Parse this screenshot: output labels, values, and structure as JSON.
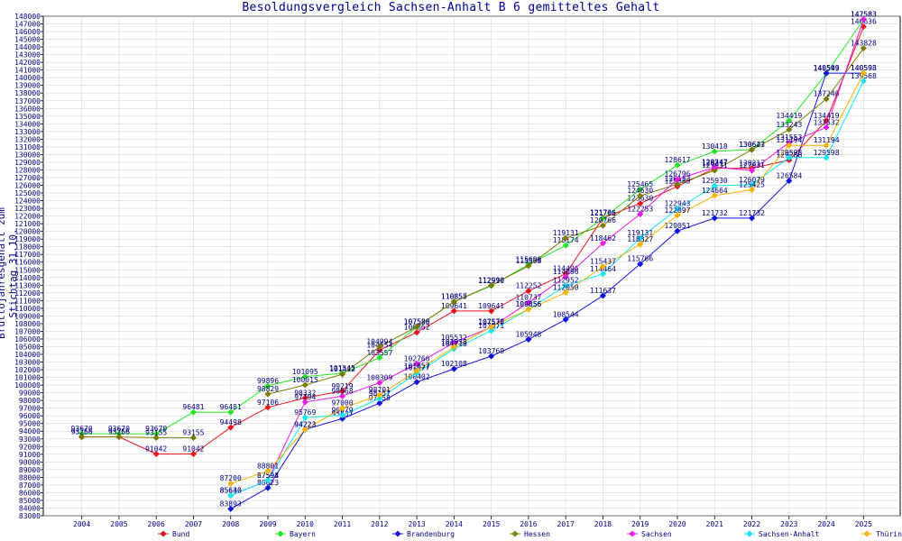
{
  "chart_data": {
    "type": "line",
    "title": "Besoldungsvergleich Sachsen-Anhalt B 6 gemitteltes Gehalt",
    "ylabel": "Bruttojahresgehalt zum Stichtag 31.10.",
    "xlabel": "",
    "ylim": [
      83000,
      148000
    ],
    "ytick_step": 1000,
    "grid": true,
    "legend_position": "bottom",
    "x": [
      2004,
      2005,
      2006,
      2007,
      2008,
      2009,
      2010,
      2011,
      2012,
      2013,
      2014,
      2015,
      2016,
      2017,
      2018,
      2019,
      2020,
      2021,
      2022,
      2023,
      2024,
      2025
    ],
    "series": [
      {
        "name": "Bund",
        "color": "#e8141c",
        "values": [
          93266,
          93266,
          91042,
          91042,
          94498,
          97106,
          98332,
          99219,
          104554,
          106862,
          109641,
          109641,
          112252,
          114496,
          121766,
          123630,
          125865,
          128217,
          128217,
          129288,
          134419,
          146636
        ]
      },
      {
        "name": "Bayern",
        "color": "#22e622",
        "values": [
          93670,
          93670,
          93670,
          96481,
          96481,
          99896,
          101095,
          101545,
          103557,
          107586,
          110855,
          112910,
          115698,
          118174,
          121705,
          125465,
          128617,
          130418,
          130643,
          134419,
          140549,
          147583
        ]
      },
      {
        "name": "Brandenburg",
        "color": "#1010e0",
        "values": [
          null,
          null,
          null,
          null,
          83893,
          86623,
          94223,
          95637,
          97658,
          100402,
          102108,
          103769,
          105948,
          108544,
          111637,
          115766,
          120051,
          121732,
          121732,
          126584,
          140593,
          140593
        ]
      },
      {
        "name": "Hessen",
        "color": "#7b7a00",
        "values": [
          93256,
          93256,
          93155,
          93155,
          null,
          98829,
          100015,
          101412,
          104994,
          107588,
          110857,
          112990,
          115508,
          119131,
          120766,
          124630,
          126153,
          127931,
          130627,
          133243,
          137240,
          143828
        ]
      },
      {
        "name": "Sachsen",
        "color": "#e61ce6",
        "values": [
          null,
          null,
          null,
          null,
          85630,
          87594,
          97794,
          98568,
          100309,
          102766,
          105532,
          107538,
          110737,
          114096,
          118462,
          122253,
          126796,
          128347,
          127931,
          131553,
          133532,
          147583
        ]
      },
      {
        "name": "Sachsen-Anhalt",
        "color": "#10e6f0",
        "values": [
          null,
          null,
          null,
          null,
          85640,
          87598,
          95769,
          96079,
          98257,
          101577,
          104718,
          107071,
          109856,
          112952,
          114464,
          119131,
          122943,
          125930,
          126079,
          129598,
          129598,
          139568
        ]
      },
      {
        "name": "Thüringen",
        "color": "#f0b400",
        "values": [
          null,
          null,
          null,
          null,
          87200,
          88801,
          94223,
          97000,
          98701,
          101857,
          104938,
          107578,
          109856,
          112050,
          115437,
          118327,
          122097,
          124664,
          125425,
          131194,
          131194,
          140598
        ]
      }
    ]
  }
}
